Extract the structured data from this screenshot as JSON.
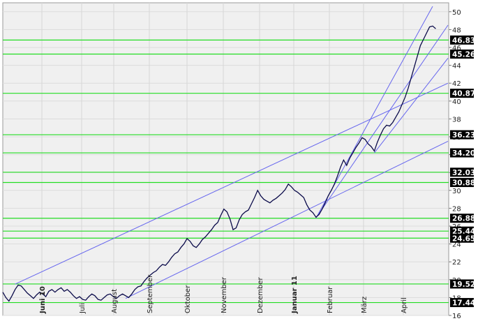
{
  "chart_data": {
    "type": "line",
    "title": "",
    "xlabel": "",
    "ylabel": "",
    "ylim": [
      16,
      51
    ],
    "x_tick_labels": [
      {
        "label": "Juni 10",
        "bold": true
      },
      {
        "label": "Juli",
        "bold": false
      },
      {
        "label": "August",
        "bold": false
      },
      {
        "label": "September",
        "bold": false
      },
      {
        "label": "Oktober",
        "bold": false
      },
      {
        "label": "November",
        "bold": false
      },
      {
        "label": "Dezember",
        "bold": false
      },
      {
        "label": "Januar 11",
        "bold": true
      },
      {
        "label": "Februar",
        "bold": false
      },
      {
        "label": "März",
        "bold": false
      },
      {
        "label": "April",
        "bold": false
      }
    ],
    "y_ticks": [
      16,
      18,
      20,
      22,
      24,
      26,
      28,
      30,
      32,
      34,
      36,
      38,
      40,
      42,
      44,
      46,
      48,
      50
    ],
    "y_tick_labels": [
      "16",
      "18",
      "20",
      "22",
      "24",
      "26",
      "28",
      "30",
      "32",
      "34",
      "36",
      "38",
      "40",
      "42",
      "44",
      "46",
      "48",
      "50"
    ],
    "horizontal_levels": [
      46.83,
      45.26,
      40.87,
      36.23,
      34.2,
      32.03,
      30.88,
      26.88,
      25.44,
      24.65,
      19.52,
      17.44
    ],
    "horizontal_level_labels": [
      "46.83",
      "45.26",
      "40.87",
      "36.23",
      "34.20",
      "32.03",
      "30.88",
      "26.88",
      "25.44",
      "24.65",
      "19.52",
      "17.44"
    ],
    "grid": true,
    "colors": {
      "price_line": "#0b0b4a",
      "level_line": "#22dd22",
      "trend_line": "#6666ee",
      "label_box": "#000000",
      "label_text": "#ffffff",
      "background": "#f0f0f0",
      "gridline": "#dcdcdc"
    },
    "series": [
      {
        "values": [
          [
            0,
            18.6
          ],
          [
            1,
            18.0
          ],
          [
            2,
            17.6
          ],
          [
            3,
            18.2
          ],
          [
            4,
            18.9
          ],
          [
            5,
            19.4
          ],
          [
            6,
            19.3
          ],
          [
            7,
            18.9
          ],
          [
            8,
            18.5
          ],
          [
            9,
            18.2
          ],
          [
            10,
            17.9
          ],
          [
            11,
            18.3
          ],
          [
            12,
            18.6
          ],
          [
            13,
            18.4
          ],
          [
            14,
            18.1
          ],
          [
            15,
            18.7
          ],
          [
            16,
            18.9
          ],
          [
            17,
            18.6
          ],
          [
            18,
            18.9
          ],
          [
            19,
            19.1
          ],
          [
            20,
            18.7
          ],
          [
            21,
            18.9
          ],
          [
            22,
            18.6
          ],
          [
            23,
            18.2
          ],
          [
            24,
            17.9
          ],
          [
            25,
            18.1
          ],
          [
            26,
            17.8
          ],
          [
            27,
            17.7
          ],
          [
            28,
            18.1
          ],
          [
            29,
            18.4
          ],
          [
            30,
            18.2
          ],
          [
            31,
            17.8
          ],
          [
            32,
            17.7
          ],
          [
            33,
            18.0
          ],
          [
            34,
            18.3
          ],
          [
            35,
            18.4
          ],
          [
            36,
            18.1
          ],
          [
            37,
            17.9
          ],
          [
            38,
            18.2
          ],
          [
            39,
            18.4
          ],
          [
            40,
            18.2
          ],
          [
            41,
            18.0
          ],
          [
            42,
            18.4
          ],
          [
            43,
            18.9
          ],
          [
            44,
            19.2
          ],
          [
            45,
            19.3
          ],
          [
            46,
            19.8
          ],
          [
            47,
            20.2
          ],
          [
            48,
            20.5
          ],
          [
            49,
            20.8
          ],
          [
            50,
            21.0
          ],
          [
            51,
            21.4
          ],
          [
            52,
            21.7
          ],
          [
            53,
            21.6
          ],
          [
            54,
            22.0
          ],
          [
            55,
            22.5
          ],
          [
            56,
            22.9
          ],
          [
            57,
            23.1
          ],
          [
            58,
            23.6
          ],
          [
            59,
            24.0
          ],
          [
            60,
            24.6
          ],
          [
            61,
            24.3
          ],
          [
            62,
            23.8
          ],
          [
            63,
            23.6
          ],
          [
            64,
            24.0
          ],
          [
            65,
            24.5
          ],
          [
            66,
            24.8
          ],
          [
            67,
            25.2
          ],
          [
            68,
            25.6
          ],
          [
            69,
            26.1
          ],
          [
            70,
            26.4
          ],
          [
            71,
            27.2
          ],
          [
            72,
            27.9
          ],
          [
            73,
            27.6
          ],
          [
            74,
            26.8
          ],
          [
            75,
            25.6
          ],
          [
            76,
            25.8
          ],
          [
            77,
            26.7
          ],
          [
            78,
            27.3
          ],
          [
            79,
            27.6
          ],
          [
            80,
            27.8
          ],
          [
            81,
            28.5
          ],
          [
            82,
            29.2
          ],
          [
            83,
            30.0
          ],
          [
            84,
            29.4
          ],
          [
            85,
            29.0
          ],
          [
            86,
            28.8
          ],
          [
            87,
            28.6
          ],
          [
            88,
            28.9
          ],
          [
            89,
            29.1
          ],
          [
            90,
            29.4
          ],
          [
            91,
            29.7
          ],
          [
            92,
            30.1
          ],
          [
            93,
            30.7
          ],
          [
            94,
            30.4
          ],
          [
            95,
            30.0
          ],
          [
            96,
            29.8
          ],
          [
            97,
            29.5
          ],
          [
            98,
            29.2
          ],
          [
            99,
            28.4
          ],
          [
            100,
            27.8
          ],
          [
            101,
            27.5
          ],
          [
            102,
            27.0
          ],
          [
            103,
            27.3
          ],
          [
            104,
            27.9
          ],
          [
            105,
            28.6
          ],
          [
            106,
            29.4
          ],
          [
            107,
            30.0
          ],
          [
            108,
            30.7
          ],
          [
            109,
            31.6
          ],
          [
            110,
            32.6
          ],
          [
            111,
            33.4
          ],
          [
            112,
            32.8
          ],
          [
            113,
            33.6
          ],
          [
            114,
            34.2
          ],
          [
            115,
            34.8
          ],
          [
            116,
            35.3
          ],
          [
            117,
            35.9
          ],
          [
            118,
            35.7
          ],
          [
            119,
            35.2
          ],
          [
            120,
            34.9
          ],
          [
            121,
            34.4
          ],
          [
            122,
            35.4
          ],
          [
            123,
            36.2
          ],
          [
            124,
            36.9
          ],
          [
            125,
            37.3
          ],
          [
            126,
            37.2
          ],
          [
            127,
            37.6
          ],
          [
            128,
            38.2
          ],
          [
            129,
            38.8
          ],
          [
            130,
            39.6
          ],
          [
            131,
            40.4
          ],
          [
            132,
            41.4
          ],
          [
            133,
            42.6
          ],
          [
            134,
            43.8
          ],
          [
            135,
            45.0
          ],
          [
            136,
            46.2
          ],
          [
            137,
            46.9
          ],
          [
            138,
            47.6
          ],
          [
            139,
            48.3
          ],
          [
            140,
            48.4
          ],
          [
            141,
            48.1
          ]
        ],
        "x_range": [
          0,
          141
        ]
      }
    ],
    "trend_lines": [
      {
        "from": [
          4,
          19.5
        ],
        "to": [
          145,
          42.0
        ]
      },
      {
        "from": [
          40,
          17.9
        ],
        "to": [
          145,
          35.5
        ]
      },
      {
        "from": [
          102,
          26.9
        ],
        "to": [
          140,
          50.6
        ]
      },
      {
        "from": [
          102,
          26.9
        ],
        "to": [
          145,
          48.5
        ]
      },
      {
        "from": [
          121,
          34.2
        ],
        "to": [
          145,
          44.8
        ]
      }
    ]
  }
}
